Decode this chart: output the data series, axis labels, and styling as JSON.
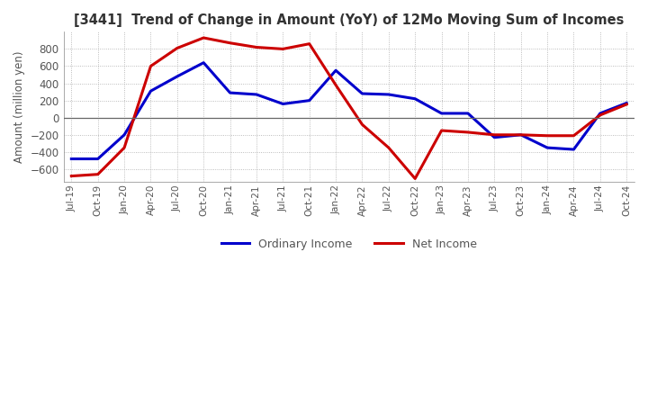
{
  "title": "[3441]  Trend of Change in Amount (YoY) of 12Mo Moving Sum of Incomes",
  "ylabel": "Amount (million yen)",
  "ylim": [
    -750,
    1000
  ],
  "yticks": [
    -600,
    -400,
    -200,
    0,
    200,
    400,
    600,
    800
  ],
  "x_labels": [
    "Jul-19",
    "Oct-19",
    "Jan-20",
    "Apr-20",
    "Jul-20",
    "Oct-20",
    "Jan-21",
    "Apr-21",
    "Jul-21",
    "Oct-21",
    "Jan-22",
    "Apr-22",
    "Jul-22",
    "Oct-22",
    "Jan-23",
    "Apr-23",
    "Jul-23",
    "Oct-23",
    "Jan-24",
    "Apr-24",
    "Jul-24",
    "Oct-24"
  ],
  "ordinary_income": [
    -480,
    -480,
    -200,
    310,
    480,
    640,
    290,
    270,
    160,
    200,
    550,
    280,
    270,
    220,
    50,
    50,
    -230,
    -200,
    -350,
    -370,
    50,
    170
  ],
  "net_income": [
    -680,
    -660,
    -350,
    600,
    810,
    930,
    870,
    820,
    800,
    860,
    380,
    -80,
    -350,
    -710,
    -150,
    -170,
    -200,
    -200,
    -210,
    -210,
    30,
    155
  ],
  "ordinary_color": "#0000cc",
  "net_color": "#cc0000",
  "background_color": "#ffffff",
  "grid_color": "#aaaaaa",
  "title_color": "#333333",
  "tick_label_color": "#555555",
  "legend_label_color": "#555555"
}
